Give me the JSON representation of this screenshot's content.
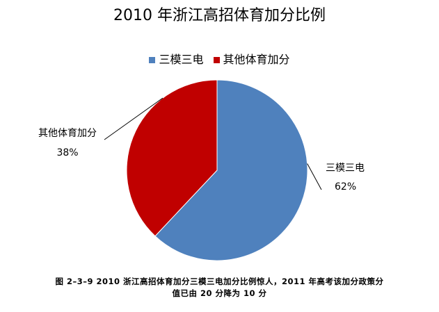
{
  "chart_data": {
    "type": "pie",
    "title": "2010 年浙江高招体育加分比例",
    "categories": [
      "三模三电",
      "其他体育加分"
    ],
    "values": [
      62,
      38
    ],
    "data_labels": [
      "62%",
      "38%"
    ],
    "colors": [
      "#4F81BD",
      "#C00000"
    ],
    "legend_position": "top"
  },
  "caption": {
    "line1": "图 2–3–9 2010 浙江高招体育加分三模三电加分比例惊人，2011 年高考该加分政策分",
    "line2": "值已由 20 分降为 10 分"
  }
}
